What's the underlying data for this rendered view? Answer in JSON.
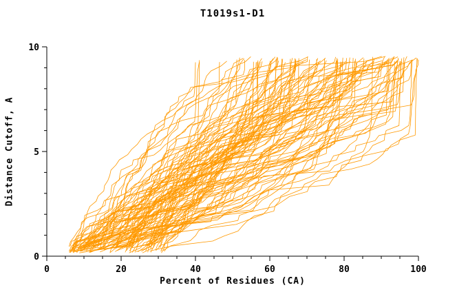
{
  "chart_data": {
    "type": "line",
    "title": "T1019s1-D1",
    "xlabel": "Percent of Residues (CA)",
    "ylabel": "Distance Cutoff, A",
    "xlim": [
      0,
      100
    ],
    "ylim": [
      0,
      10
    ],
    "xticks": [
      0,
      20,
      40,
      60,
      80,
      100
    ],
    "xtick_minor_step": 5,
    "yticks": [
      0,
      5,
      10
    ],
    "ytick_minor_step": 1,
    "grid": false,
    "legend": "none",
    "line_color": "#FF9900",
    "axis_color": "#000000",
    "background_color": "#FFFFFF",
    "series_style": "many overlapping monotone model curves (GDT-style), one per model",
    "curves": {
      "count": 110,
      "seed": 1019,
      "y_min": 0.15,
      "y_max": 9.55,
      "start_x_range": [
        6,
        32
      ],
      "end_x_range": [
        40,
        100
      ],
      "steps": 38,
      "shape_range": [
        -2.2,
        2.2
      ]
    }
  }
}
